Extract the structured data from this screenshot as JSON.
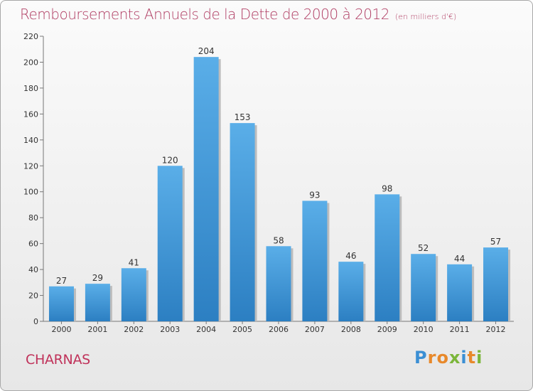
{
  "title": "Remboursements Annuels de la Dette de 2000 à 2012",
  "unit_note": "(en milliers d'€)",
  "commune": "CHARNAS",
  "logo": {
    "text": "Proxiti",
    "letters": [
      {
        "char": "P",
        "color": "#3b8fd4"
      },
      {
        "char": "r",
        "color": "#e8892b"
      },
      {
        "char": "o",
        "color": "#e8892b"
      },
      {
        "char": "x",
        "color": "#7bb63a"
      },
      {
        "char": "i",
        "color": "#3b8fd4"
      },
      {
        "char": "t",
        "color": "#e8892b"
      },
      {
        "char": "i",
        "color": "#7bb63a"
      }
    ]
  },
  "colors": {
    "bar_top": "#5aaee8",
    "bar_bottom": "#2c7fc2",
    "title": "#b03d63"
  },
  "chart_data": {
    "type": "bar",
    "title": "Remboursements Annuels de la Dette de 2000 à 2012",
    "xlabel": "",
    "ylabel": "",
    "categories": [
      "2000",
      "2001",
      "2002",
      "2003",
      "2004",
      "2005",
      "2006",
      "2007",
      "2008",
      "2009",
      "2010",
      "2011",
      "2012"
    ],
    "values": [
      27,
      29,
      41,
      120,
      204,
      153,
      58,
      93,
      46,
      98,
      52,
      44,
      57
    ],
    "ylim": [
      0,
      220
    ],
    "yticks": [
      0,
      20,
      40,
      60,
      80,
      100,
      120,
      140,
      160,
      180,
      200,
      220
    ],
    "grid": false,
    "data_labels": true
  }
}
